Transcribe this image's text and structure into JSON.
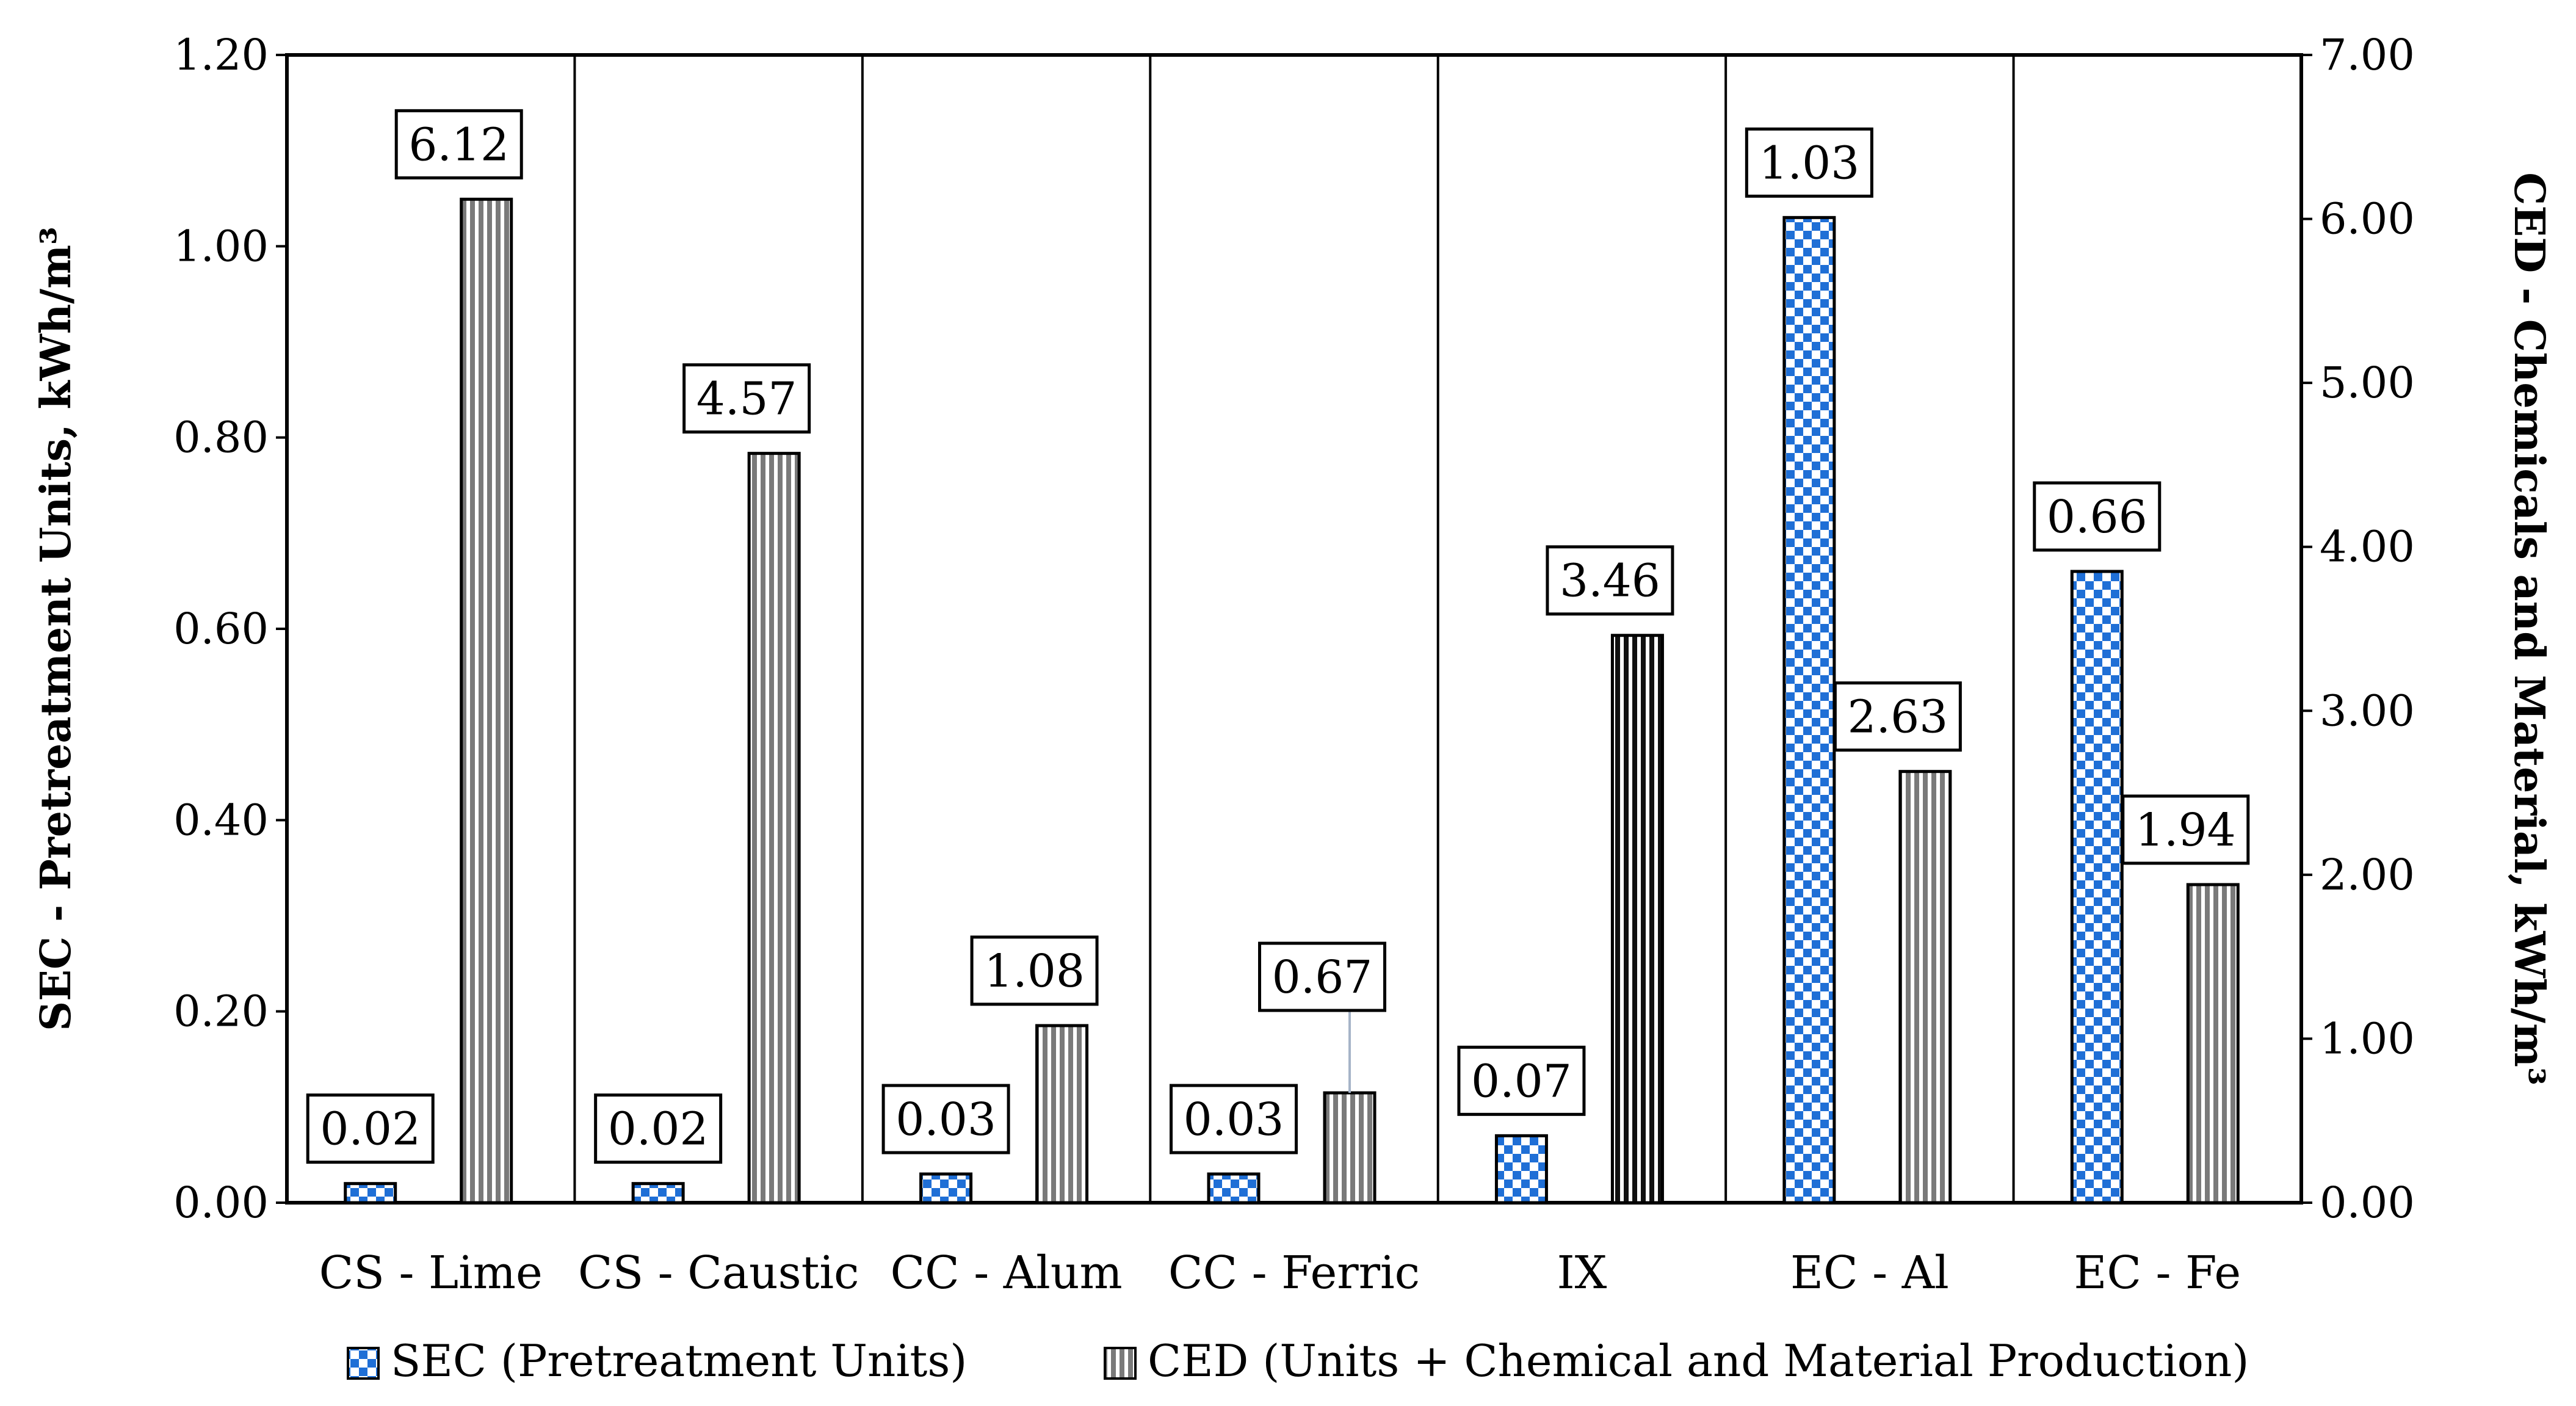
{
  "chart_data": {
    "type": "bar",
    "title": "",
    "categories": [
      "CS - Lime",
      "CS - Caustic",
      "CC - Alum",
      "CC - Ferric",
      "IX",
      "EC - Al",
      "EC - Fe"
    ],
    "series": [
      {
        "name": "SEC (Pretreatment Units)",
        "axis": "left",
        "values": [
          0.02,
          0.02,
          0.03,
          0.03,
          0.07,
          1.03,
          0.66
        ],
        "labels": [
          "0.02",
          "0.02",
          "0.03",
          "0.03",
          "0.07",
          "1.03",
          "0.66"
        ]
      },
      {
        "name": "CED (Units + Chemical and Material Production)",
        "axis": "right",
        "values": [
          6.12,
          4.57,
          1.08,
          0.67,
          3.46,
          2.63,
          1.94
        ],
        "labels": [
          "6.12",
          "4.57",
          "1.08",
          "0.67",
          "3.46",
          "2.63",
          "1.94"
        ]
      }
    ],
    "ylabel_left": "SEC - Pretreatment Units, kWh/m³",
    "ylabel_right": "CED - Chemicals and Material, kWh/m³",
    "ylim_left": [
      0,
      1.2
    ],
    "ylim_right": [
      0,
      7
    ],
    "yticks_left": [
      "0.00",
      "0.20",
      "0.40",
      "0.60",
      "0.80",
      "1.00",
      "1.20"
    ],
    "yticks_right": [
      "0.00",
      "1.00",
      "2.00",
      "3.00",
      "4.00",
      "5.00",
      "6.00",
      "7.00"
    ],
    "legend_position": "bottom",
    "colors": {
      "sec": "#1f6fd6",
      "ced": "#7a7a7a"
    }
  }
}
